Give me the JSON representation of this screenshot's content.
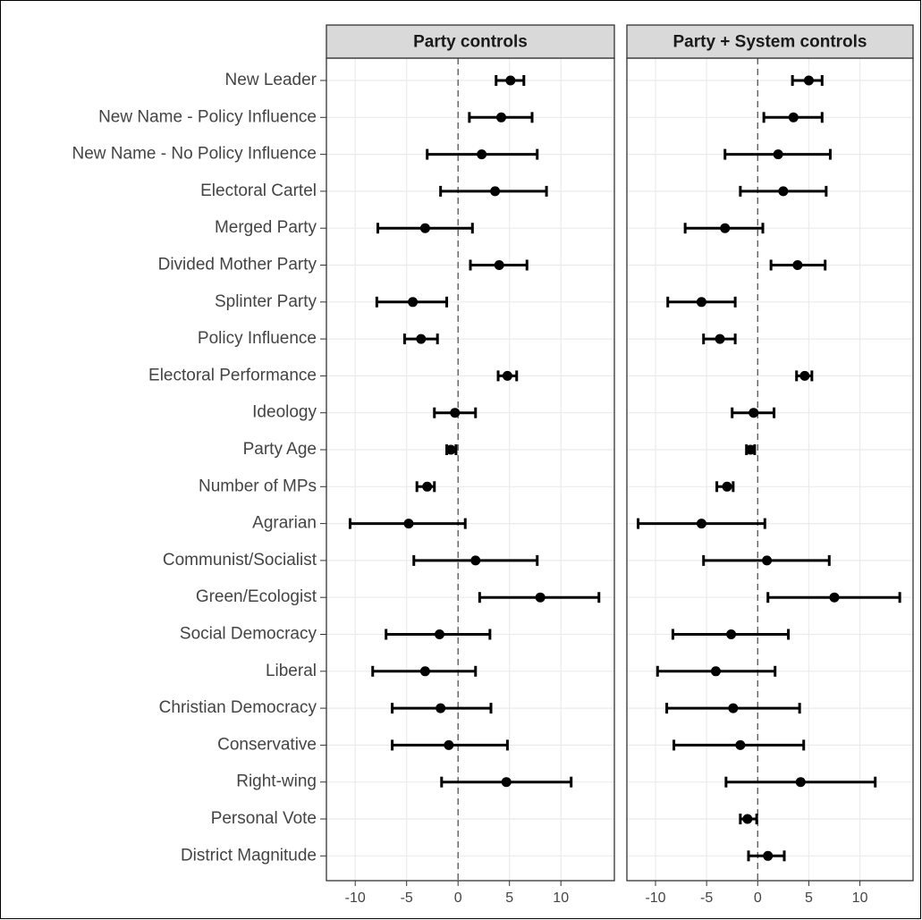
{
  "chart_data": {
    "type": "coefficient",
    "categories": [
      "New Leader",
      "New Name - Policy Influence",
      "New Name - No Policy Influence",
      "Electoral Cartel",
      "Merged Party",
      "Divided Mother Party",
      "Splinter Party",
      "Policy Influence",
      "Electoral Performance",
      "Ideology",
      "Party Age",
      "Number of MPs",
      "Agrarian",
      "Communist/Socialist",
      "Green/Ecologist",
      "Social Democracy",
      "Liberal",
      "Christian Democracy",
      "Conservative",
      "Right-wing",
      "Personal Vote",
      "District Magnitude"
    ],
    "series": [
      {
        "name": "Party controls",
        "color": "#000000",
        "values": [
          5.1,
          4.2,
          2.3,
          3.6,
          -3.2,
          4.0,
          -4.4,
          -3.6,
          4.8,
          -0.3,
          -0.7,
          -3.0,
          -4.8,
          1.7,
          8.0,
          -1.8,
          -3.2,
          -1.7,
          -0.9,
          4.7,
          null,
          null
        ],
        "lower": [
          3.7,
          1.1,
          -3.0,
          -1.7,
          -7.8,
          1.2,
          -7.9,
          -5.2,
          3.9,
          -2.3,
          -1.1,
          -4.0,
          -10.5,
          -4.3,
          2.1,
          -7.0,
          -8.3,
          -6.4,
          -6.4,
          -1.6,
          null,
          null
        ],
        "upper": [
          6.4,
          7.2,
          7.7,
          8.6,
          1.4,
          6.7,
          -1.1,
          -2.0,
          5.7,
          1.7,
          -0.2,
          -2.3,
          0.7,
          7.7,
          13.7,
          3.1,
          1.7,
          3.2,
          4.8,
          11.0,
          null,
          null
        ]
      },
      {
        "name": "Party + System controls",
        "color": "#000000",
        "values": [
          5.0,
          3.5,
          2.0,
          2.5,
          -3.2,
          3.9,
          -5.5,
          -3.7,
          4.6,
          -0.4,
          -0.7,
          -3.0,
          -5.5,
          0.9,
          7.5,
          -2.6,
          -4.1,
          -2.4,
          -1.7,
          4.2,
          -1.0,
          1.0
        ],
        "lower": [
          3.4,
          0.6,
          -3.2,
          -1.7,
          -7.1,
          1.3,
          -8.8,
          -5.3,
          3.8,
          -2.5,
          -1.1,
          -4.0,
          -11.7,
          -5.3,
          1.0,
          -8.3,
          -9.8,
          -8.9,
          -8.2,
          -3.1,
          -1.7,
          -0.9
        ],
        "upper": [
          6.3,
          6.3,
          7.1,
          6.7,
          0.5,
          6.6,
          -2.2,
          -2.2,
          5.3,
          1.6,
          -0.3,
          -2.4,
          0.7,
          7.0,
          13.9,
          3.0,
          1.7,
          4.1,
          4.5,
          11.5,
          -0.1,
          2.6
        ]
      }
    ],
    "xlim": [
      -12.8,
      15.2
    ],
    "xticks": [
      -10,
      -5,
      0,
      5,
      10
    ],
    "reference_x": 0,
    "grid": true
  }
}
